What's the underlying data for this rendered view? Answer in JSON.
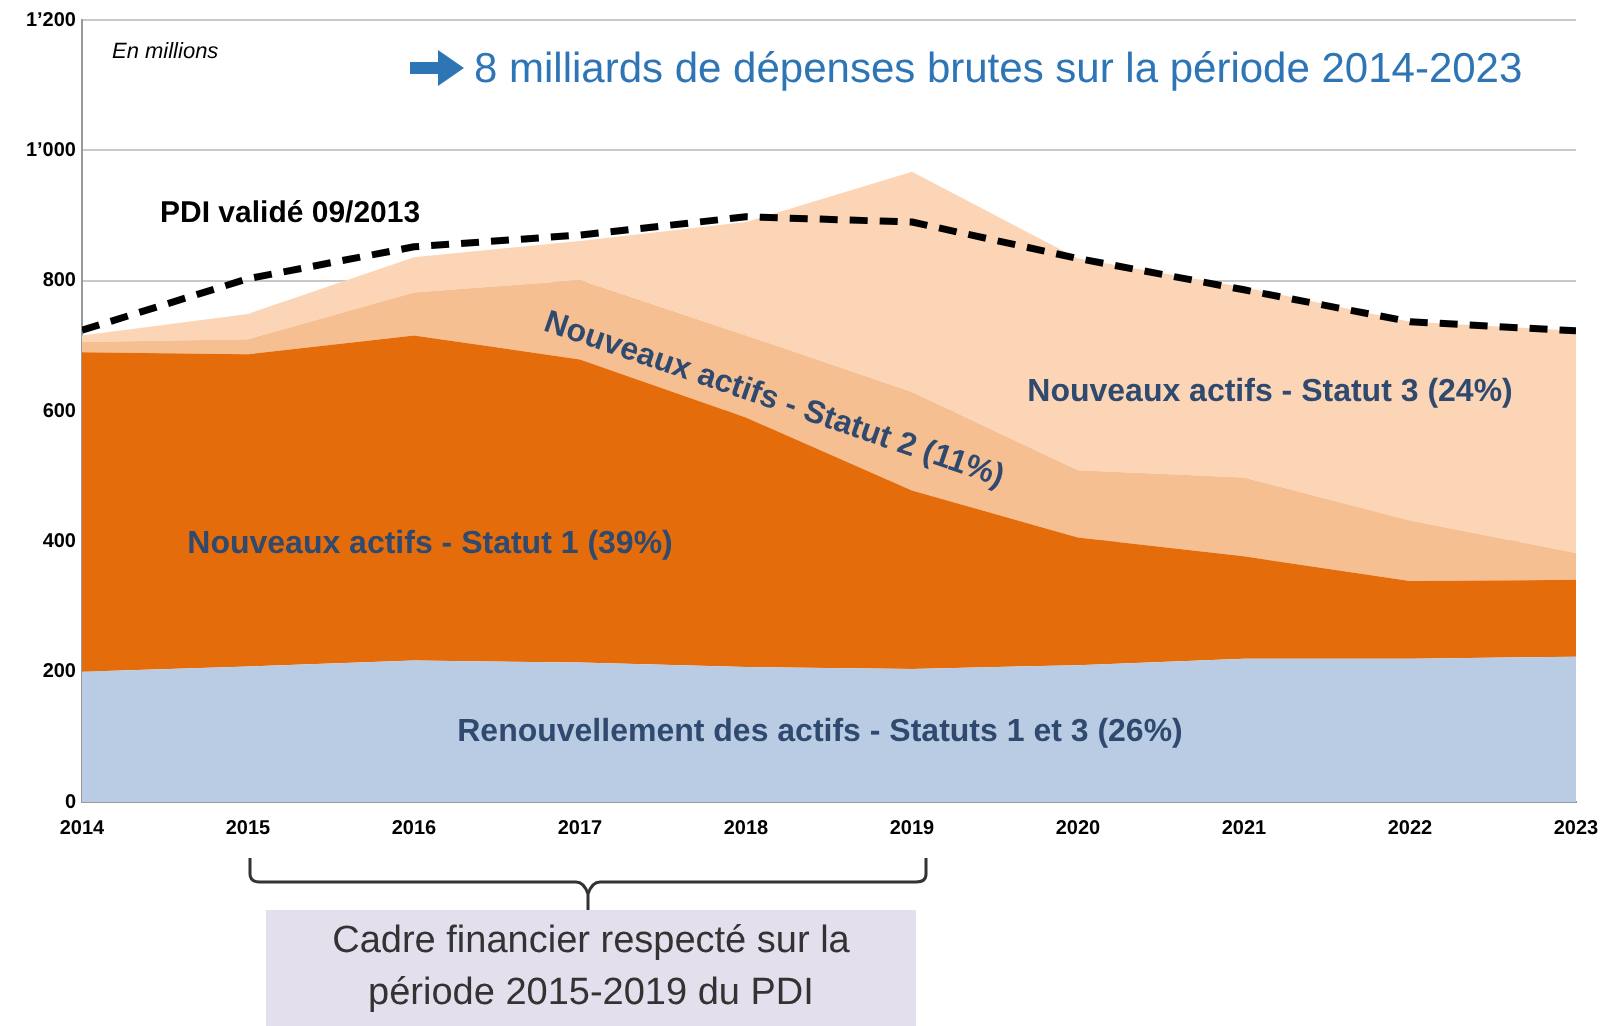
{
  "chart_data": {
    "type": "area",
    "title": "8 milliards de dépenses brutes sur la période 2014-2023",
    "ylabel": "En millions",
    "stacked": true,
    "grid": "y",
    "legend": false,
    "marker": "none",
    "x": [
      2014,
      2015,
      2016,
      2017,
      2018,
      2019,
      2020,
      2021,
      2022,
      2023
    ],
    "xlim": [
      2014,
      2023
    ],
    "xticks": [
      2014,
      2015,
      2016,
      2017,
      2018,
      2019,
      2020,
      2021,
      2022,
      2023
    ],
    "ylim": [
      0,
      1200
    ],
    "yticks": [
      0,
      200,
      400,
      600,
      800,
      {
        "value": 1000,
        "label": "1’000"
      },
      {
        "value": 1200,
        "label": "1’200"
      }
    ],
    "series": [
      {
        "name": "Renouvellement des actifs - Statuts 1 et 3 (26%)",
        "color": "#b9cce4",
        "values": [
          200,
          208,
          217,
          214,
          207,
          204,
          210,
          220,
          220,
          223
        ]
      },
      {
        "name": "Nouveaux actifs - Statut 1 (39%)",
        "color": "#e46c0a",
        "values": [
          490,
          479,
          499,
          465,
          383,
          274,
          196,
          157,
          119,
          118
        ]
      },
      {
        "name": "Nouveaux actifs - Statut 2 (11%)",
        "color": "#f6bf91",
        "values": [
          16,
          23,
          66,
          122,
          126,
          151,
          103,
          121,
          93,
          41
        ]
      },
      {
        "name": "Nouveaux actifs - Statut 3 (24%)",
        "color": "#fbd5b5",
        "values": [
          10,
          39,
          54,
          60,
          174,
          338,
          325,
          292,
          305,
          341
        ]
      },
      {
        "name": "PDI validé 09/2013",
        "color": "#000000",
        "type": "line",
        "line_style": "dashed",
        "values": [
          724,
          803,
          852,
          870,
          898,
          890,
          834,
          786,
          737,
          723
        ]
      }
    ],
    "annotations": [
      "Cadre financier respecté sur la période 2015-2019 du PDI"
    ]
  }
}
